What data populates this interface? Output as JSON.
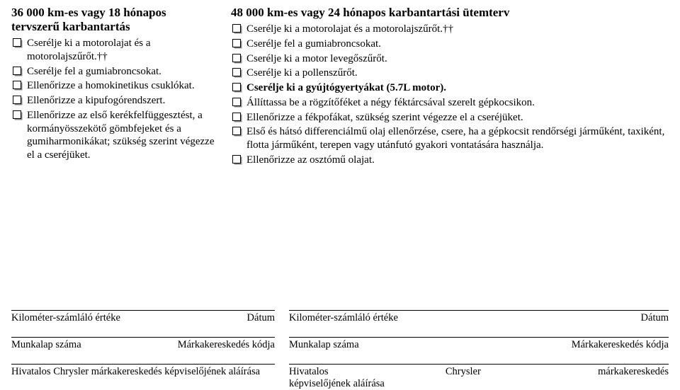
{
  "left": {
    "title": "36 000 km-es vagy 18 hónapos tervszerű karbantartás",
    "items": [
      {
        "text": "Cserélje ki a motorolajat és a motorolajszűrőt.††",
        "bold": false
      },
      {
        "text": "Cserélje fel a gumiabroncsokat.",
        "bold": false
      },
      {
        "text": "Ellenőrizze a homokinetikus csuklókat.",
        "bold": false
      },
      {
        "text": "Ellenőrizze a kipufogórendszert.",
        "bold": false
      },
      {
        "text": "Ellenőrizze az első kerékfelfüggesztést, a kormányösszekötő gömbfejeket és a gumiharmonikákat; szükség szerint végezze el a cseréjüket.",
        "bold": false
      }
    ]
  },
  "right": {
    "title": "48 000 km-es vagy 24 hónapos karbantartási ütemterv",
    "items": [
      {
        "text": "Cserélje ki a motorolajat és a motorolajszűrőt.††",
        "bold": false
      },
      {
        "text": "Cserélje fel a gumiabroncsokat.",
        "bold": false
      },
      {
        "text": "Cserélje ki a motor levegőszűrőt.",
        "bold": false
      },
      {
        "text": "Cserélje ki a pollenszűrőt.",
        "bold": false
      },
      {
        "text": "Cserélje ki a gyújtógyertyákat (5.7L motor).",
        "bold": true
      },
      {
        "text": "Állíttassa be a rögzítőféket a négy féktárcsával szerelt gépkocsikon.",
        "bold": false
      },
      {
        "text": "Ellenőrizze a fékpofákat, szükség szerint végezze el a cseréjüket.",
        "bold": false
      },
      {
        "text": "Első és hátsó differenciálmű olaj ellenőrzése, csere, ha a gépkocsit rendőrségi járműként, taxiként, flotta járműként, terepen vagy utánfutó gyakori vontatására használja.",
        "bold": false
      },
      {
        "text": "Ellenőrizze az osztómű olajat.",
        "bold": false
      }
    ]
  },
  "footer": {
    "odometer": "Kilométer-számláló értéke",
    "date": "Dátum",
    "worksheet": "Munkalap száma",
    "dealerCode": "Márkakereskedés kódja",
    "sigLeft": "Hivatalos Chrysler márkakereskedés képviselőjének aláírása",
    "sigRightA": "Hivatalos",
    "sigRightB": "Chrysler",
    "sigRightC": "márkakereskedés",
    "sigRightLine2": "képviselőjének aláírása"
  },
  "colors": {
    "text": "#000000",
    "background": "#ffffff",
    "checkboxShadow": "#888888"
  }
}
